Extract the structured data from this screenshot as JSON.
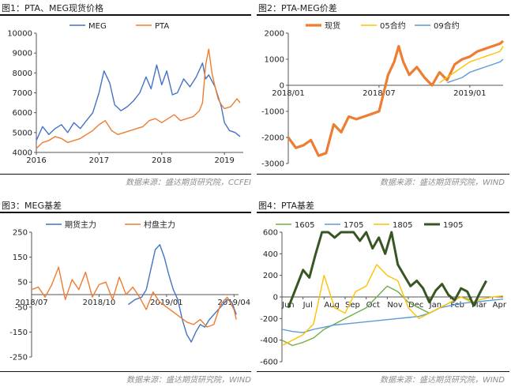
{
  "panels": [
    {
      "title": "图1：PTA、MEG现货价格"
    },
    {
      "title": "图2：PTA-MEG价差"
    },
    {
      "title": "图3：MEG基差"
    },
    {
      "title": "图4：PTA基差"
    }
  ],
  "sources": [
    "数据来源：盛达期货研究院，CCFEI",
    "数据来源：盛达期货研究院，WIND",
    "数据来源：盛达期货研究院，WIND",
    "数据来源：盛达期货研究院，WIND"
  ],
  "chart_data": [
    {
      "type": "line",
      "x_range": [
        2016.0,
        2019.3
      ],
      "ylim": [
        4000,
        10000
      ],
      "yticks": [
        4000,
        5000,
        6000,
        7000,
        8000,
        9000,
        10000
      ],
      "xticks": [
        {
          "v": 2016.0,
          "label": "2016"
        },
        {
          "v": 2017.0,
          "label": "2017"
        },
        {
          "v": 2018.0,
          "label": "2018"
        },
        {
          "v": 2019.0,
          "label": "2019"
        }
      ],
      "legend_position": "top",
      "series": [
        {
          "name": "MEG",
          "color": "#4472c4",
          "x": [
            2016.0,
            2016.1,
            2016.2,
            2016.3,
            2016.4,
            2016.5,
            2016.6,
            2016.7,
            2016.8,
            2016.9,
            2017.0,
            2017.08,
            2017.17,
            2017.25,
            2017.35,
            2017.45,
            2017.55,
            2017.65,
            2017.75,
            2017.83,
            2017.92,
            2018.0,
            2018.08,
            2018.17,
            2018.25,
            2018.35,
            2018.45,
            2018.55,
            2018.65,
            2018.7,
            2018.75,
            2018.85,
            2018.9,
            2018.95,
            2019.0,
            2019.08,
            2019.17,
            2019.25
          ],
          "y": [
            4600,
            5300,
            4900,
            5200,
            5400,
            5000,
            5500,
            5200,
            5600,
            6000,
            7000,
            8100,
            7500,
            6400,
            6100,
            6300,
            6600,
            7000,
            7800,
            7200,
            8400,
            7400,
            8100,
            6900,
            7000,
            7700,
            7300,
            7800,
            8500,
            7700,
            7900,
            7300,
            6800,
            6300,
            5500,
            5100,
            5000,
            4800
          ]
        },
        {
          "name": "PTA",
          "color": "#ed7d31",
          "x": [
            2016.0,
            2016.1,
            2016.2,
            2016.3,
            2016.4,
            2016.5,
            2016.6,
            2016.7,
            2016.8,
            2016.9,
            2017.0,
            2017.1,
            2017.2,
            2017.3,
            2017.4,
            2017.5,
            2017.6,
            2017.7,
            2017.8,
            2017.9,
            2018.0,
            2018.1,
            2018.2,
            2018.3,
            2018.4,
            2018.5,
            2018.6,
            2018.65,
            2018.7,
            2018.75,
            2018.8,
            2018.85,
            2018.9,
            2018.95,
            2019.0,
            2019.1,
            2019.2,
            2019.25
          ],
          "y": [
            4200,
            4500,
            4600,
            4800,
            4700,
            4500,
            4600,
            4700,
            4900,
            5100,
            5400,
            5600,
            5100,
            4900,
            5000,
            5100,
            5200,
            5300,
            5600,
            5700,
            5500,
            5700,
            5900,
            5600,
            5700,
            5800,
            6100,
            6500,
            8400,
            9200,
            8000,
            7300,
            6700,
            6400,
            6200,
            6300,
            6700,
            6500
          ]
        }
      ]
    },
    {
      "type": "line",
      "x_range": [
        0,
        14.2
      ],
      "ylim": [
        -3000,
        2000
      ],
      "yticks": [
        -3000,
        -2000,
        -1000,
        0,
        1000,
        2000
      ],
      "xticks": [
        {
          "v": 0,
          "label": "2018/01"
        },
        {
          "v": 6,
          "label": "2018/07"
        },
        {
          "v": 12,
          "label": "2019/01"
        }
      ],
      "legend_position": "top",
      "series": [
        {
          "name": "现货",
          "color": "#ed7d31",
          "x": [
            0,
            0.5,
            1,
            1.5,
            2,
            2.5,
            3,
            3.5,
            4,
            4.5,
            5,
            5.5,
            6,
            6.3,
            6.6,
            7,
            7.3,
            7.6,
            8,
            8.5,
            9,
            9.5,
            10,
            10.5,
            11,
            11.5,
            12,
            12.5,
            13,
            13.5,
            14,
            14.2
          ],
          "y": [
            -2000,
            -2400,
            -2300,
            -2100,
            -2700,
            -2600,
            -1500,
            -1800,
            -1200,
            -1300,
            -1200,
            -1100,
            -1000,
            -300,
            400,
            900,
            1500,
            900,
            400,
            700,
            300,
            0,
            500,
            200,
            800,
            1000,
            1100,
            1300,
            1400,
            1500,
            1600,
            1700
          ]
        },
        {
          "name": "05合约",
          "color": "#ffc000",
          "x": [
            10,
            10.5,
            11,
            11.5,
            12,
            12.5,
            13,
            13.5,
            14,
            14.2
          ],
          "y": [
            100,
            300,
            500,
            700,
            900,
            1000,
            1100,
            1200,
            1300,
            1500
          ]
        },
        {
          "name": "09合约",
          "color": "#5b9bd5",
          "x": [
            10.5,
            11,
            11.5,
            12,
            12.5,
            13,
            13.5,
            14,
            14.2
          ],
          "y": [
            100,
            200,
            300,
            500,
            600,
            700,
            800,
            900,
            1000
          ]
        }
      ]
    },
    {
      "type": "line",
      "x_range": [
        0,
        9.2
      ],
      "ylim": [
        -250,
        250
      ],
      "yticks": [
        -250,
        -150,
        -50,
        50,
        150,
        250
      ],
      "xticks": [
        {
          "v": 0,
          "label": "2018/07"
        },
        {
          "v": 3,
          "label": "2018/10"
        },
        {
          "v": 6,
          "label": "2019/01"
        },
        {
          "v": 9,
          "label": "2019/04"
        }
      ],
      "legend_position": "top",
      "series": [
        {
          "name": "期货主力",
          "color": "#4472c4",
          "x": [
            4.3,
            4.6,
            4.9,
            5.1,
            5.3,
            5.5,
            5.7,
            5.9,
            6.1,
            6.3,
            6.5,
            6.7,
            6.9,
            7.1,
            7.3,
            7.5,
            7.7,
            7.9,
            8.1,
            8.3,
            8.5,
            8.7,
            8.9,
            9.1
          ],
          "y": [
            -40,
            -20,
            -10,
            20,
            100,
            180,
            200,
            150,
            80,
            20,
            -20,
            -100,
            -160,
            -190,
            -150,
            -120,
            -130,
            -100,
            -80,
            -60,
            -40,
            -20,
            -30,
            -80
          ]
        },
        {
          "name": "村盘主力",
          "color": "#ed7d31",
          "x": [
            0,
            0.3,
            0.6,
            0.9,
            1.2,
            1.5,
            1.8,
            2.1,
            2.4,
            2.7,
            3.0,
            3.3,
            3.6,
            3.9,
            4.2,
            4.5,
            4.8,
            5.1,
            5.4,
            5.7,
            6.0,
            6.3,
            6.6,
            6.9,
            7.2,
            7.5,
            7.8,
            8.1,
            8.4,
            8.7,
            9.0,
            9.1
          ],
          "y": [
            20,
            30,
            -10,
            40,
            110,
            -20,
            60,
            20,
            90,
            -10,
            40,
            50,
            -20,
            70,
            0,
            30,
            -10,
            -60,
            10,
            -30,
            -50,
            -70,
            -90,
            -110,
            -120,
            -100,
            -130,
            -120,
            -40,
            -10,
            -60,
            -100
          ]
        }
      ]
    },
    {
      "type": "line",
      "x_range": [
        0,
        10.5
      ],
      "ylim": [
        -600,
        600
      ],
      "yticks": [
        -600,
        -400,
        -200,
        0,
        200,
        400,
        600
      ],
      "xticks": [
        {
          "v": 0,
          "label": "Jun"
        },
        {
          "v": 1,
          "label": "Jul"
        },
        {
          "v": 2,
          "label": "Aug"
        },
        {
          "v": 3,
          "label": "Sep"
        },
        {
          "v": 4,
          "label": "Oct"
        },
        {
          "v": 5,
          "label": "Nov"
        },
        {
          "v": 6,
          "label": "Dec"
        },
        {
          "v": 7,
          "label": "Jan"
        },
        {
          "v": 8,
          "label": "Feb"
        },
        {
          "v": 9,
          "label": "Mar"
        },
        {
          "v": 10,
          "label": "Apr"
        }
      ],
      "legend_position": "top",
      "series": [
        {
          "name": "1605",
          "color": "#70ad47",
          "x": [
            0,
            0.5,
            1,
            1.5,
            2,
            2.5,
            3,
            3.5,
            4,
            4.5,
            5,
            5.5,
            6,
            6.5,
            7,
            7.5,
            8,
            8.5,
            9
          ],
          "y": [
            -400,
            -450,
            -420,
            -380,
            -300,
            -250,
            -200,
            -150,
            -100,
            0,
            100,
            50,
            -50,
            -100,
            -150,
            -100,
            -50,
            0,
            -30
          ]
        },
        {
          "name": "1705",
          "color": "#5b9bd5",
          "x": [
            0,
            0.5,
            1,
            1.5,
            2,
            2.5,
            3,
            3.5,
            4,
            4.5,
            5,
            5.5,
            6,
            6.5,
            7,
            7.5,
            8,
            8.5,
            9,
            9.5,
            10,
            10.5
          ],
          "y": [
            -300,
            -320,
            -330,
            -300,
            -280,
            -260,
            -250,
            -240,
            -230,
            -220,
            -210,
            -200,
            -190,
            -180,
            -150,
            -100,
            -80,
            -60,
            -50,
            -40,
            -30,
            -20
          ]
        },
        {
          "name": "1805",
          "color": "#ffc000",
          "x": [
            0,
            0.5,
            1,
            1.5,
            2,
            2.5,
            3,
            3.5,
            4,
            4.5,
            5,
            5.5,
            6,
            6.5,
            7,
            7.5,
            8,
            8.5,
            9,
            9.5,
            10,
            10.5
          ],
          "y": [
            -450,
            -400,
            -350,
            -250,
            200,
            -100,
            -150,
            50,
            100,
            300,
            200,
            150,
            -100,
            -200,
            -150,
            -100,
            -50,
            0,
            -50,
            -20,
            0,
            10
          ]
        },
        {
          "name": "1905",
          "color": "#375623",
          "x": [
            0.3,
            0.7,
            1,
            1.3,
            1.6,
            1.9,
            2.2,
            2.5,
            2.8,
            3.1,
            3.4,
            3.7,
            4,
            4.3,
            4.6,
            4.9,
            5.2,
            5.5,
            5.8,
            6.1,
            6.4,
            6.7,
            7,
            7.3,
            7.6,
            7.9,
            8.2,
            8.5,
            8.8,
            9.1,
            9.4,
            9.7
          ],
          "y": [
            -100,
            100,
            250,
            180,
            400,
            600,
            600,
            550,
            600,
            600,
            600,
            520,
            600,
            450,
            550,
            400,
            600,
            300,
            200,
            100,
            150,
            80,
            -50,
            60,
            120,
            20,
            -30,
            80,
            50,
            -80,
            40,
            150
          ]
        }
      ]
    }
  ]
}
